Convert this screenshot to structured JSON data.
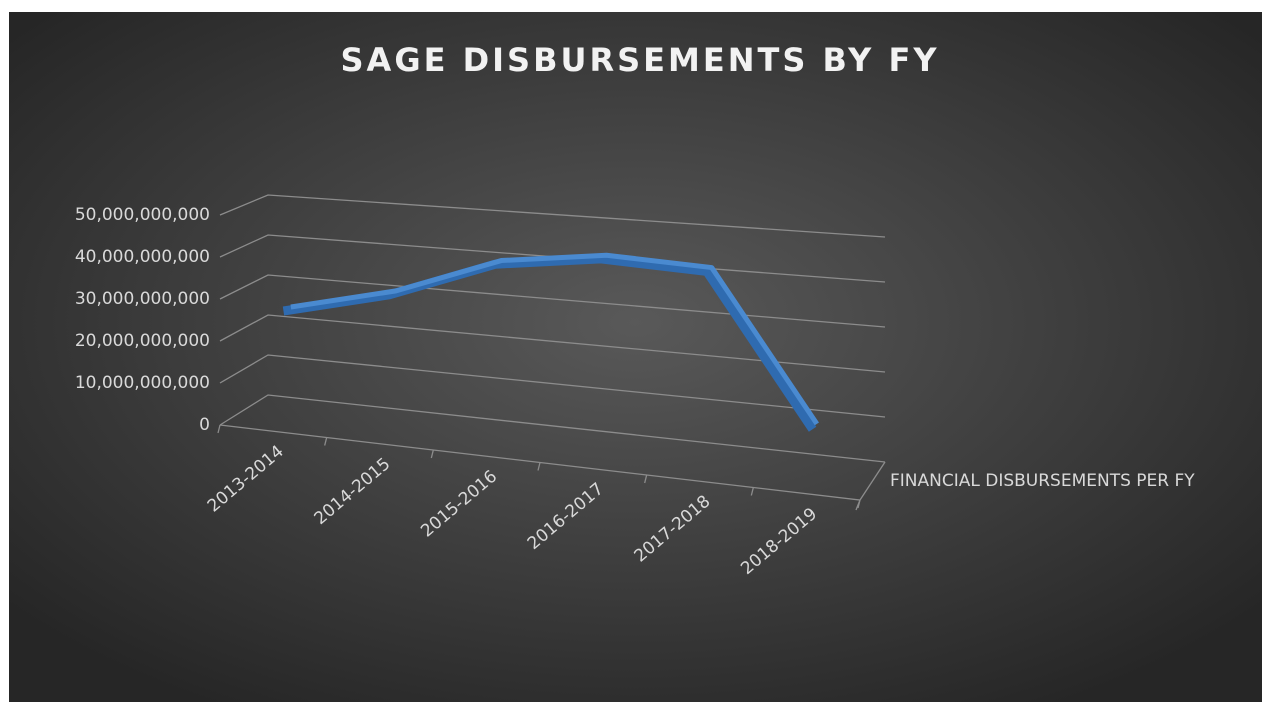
{
  "chart_data": {
    "type": "line3d",
    "title": "SAGE DISBURSEMENTS BY FY",
    "categories": [
      "2013-2014",
      "2014-2015",
      "2015-2016",
      "2016-2017",
      "2017-2018",
      "2018-2019"
    ],
    "series": [
      {
        "name": "FINANCIAL DISBURSEMENTS PER FY",
        "color": "#4a8ad0",
        "values": [
          27000000000,
          33000000000,
          42000000000,
          45000000000,
          44000000000,
          12000000000
        ]
      }
    ],
    "ylim": [
      0,
      50000000000
    ],
    "yticks": [
      0,
      {
        "value": 10000000000,
        "label": "10,000,000,000"
      },
      {
        "value": 20000000000,
        "label": "20,000,000,000"
      },
      {
        "value": 30000000000,
        "label": "30,000,000,000"
      },
      {
        "value": 40000000000,
        "label": "40,000,000,000"
      },
      {
        "value": 50000000000,
        "label": "50,000,000,000"
      }
    ],
    "grid": true,
    "legend": "right"
  }
}
